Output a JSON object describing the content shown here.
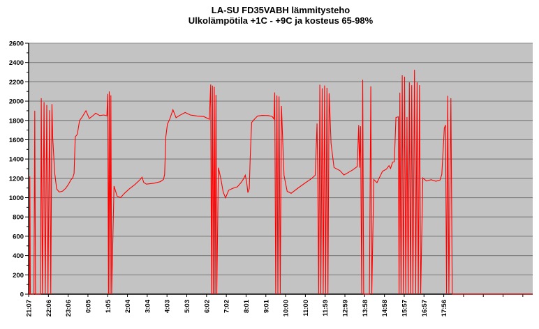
{
  "chart_data": {
    "type": "line",
    "title": "LA-SU FD35VABH lämmitysteho",
    "subtitle": "Ulkolämpötila  +1C - +9C ja kosteus 65-98%",
    "x_axis": {
      "labels": [
        "21:07",
        "22:06",
        "23:06",
        "0:05",
        "1:05",
        "2:04",
        "3:04",
        "4:03",
        "5:03",
        "6:02",
        "7:02",
        "8:01",
        "9:01",
        "10:00",
        "11:00",
        "11:59",
        "12:59",
        "13:58",
        "14:58",
        "15:57",
        "16:57",
        "17:56"
      ],
      "unlabeled_tick_count": 4,
      "span_hours": 25.5
    },
    "y_axis": {
      "min": 0,
      "max": 2600,
      "step": 200,
      "minor_step": 100,
      "tick_labels": [
        "0",
        "200",
        "400",
        "600",
        "800",
        "1000",
        "1200",
        "1400",
        "1600",
        "1800",
        "2000",
        "2200",
        "2400",
        "2600"
      ]
    },
    "grid": true,
    "legend": "none",
    "colors": {
      "plot_bg": "#C3C3C3",
      "gridline": "#808080",
      "top_gridline": "#9C9C9C",
      "axis": "#000000",
      "line": "#FF0000",
      "background": "#FFFFFF",
      "text": "#000000"
    },
    "series": [
      {
        "name": "lämmitysteho",
        "points": [
          [
            0.0,
            0
          ],
          [
            0.04,
            0
          ],
          [
            0.06,
            1220
          ],
          [
            0.09,
            0
          ],
          [
            0.27,
            0
          ],
          [
            0.31,
            1900
          ],
          [
            0.35,
            0
          ],
          [
            0.6,
            0
          ],
          [
            0.64,
            2030
          ],
          [
            0.7,
            0
          ],
          [
            0.78,
            1990
          ],
          [
            0.84,
            0
          ],
          [
            0.92,
            1960
          ],
          [
            0.98,
            0
          ],
          [
            1.06,
            1905
          ],
          [
            1.12,
            0
          ],
          [
            1.18,
            1970
          ],
          [
            1.22,
            1620
          ],
          [
            1.32,
            1250
          ],
          [
            1.42,
            1090
          ],
          [
            1.55,
            1058
          ],
          [
            1.72,
            1068
          ],
          [
            1.88,
            1098
          ],
          [
            2.02,
            1140
          ],
          [
            2.14,
            1185
          ],
          [
            2.22,
            1200
          ],
          [
            2.3,
            1250
          ],
          [
            2.36,
            1630
          ],
          [
            2.46,
            1655
          ],
          [
            2.58,
            1800
          ],
          [
            2.7,
            1832
          ],
          [
            2.9,
            1900
          ],
          [
            3.07,
            1820
          ],
          [
            3.25,
            1848
          ],
          [
            3.39,
            1875
          ],
          [
            3.6,
            1850
          ],
          [
            3.8,
            1856
          ],
          [
            3.96,
            1848
          ],
          [
            4.0,
            2075
          ],
          [
            4.04,
            0
          ],
          [
            4.08,
            2100
          ],
          [
            4.12,
            0
          ],
          [
            4.16,
            2060
          ],
          [
            4.2,
            0
          ],
          [
            4.32,
            1120
          ],
          [
            4.48,
            1015
          ],
          [
            4.65,
            1000
          ],
          [
            4.85,
            1045
          ],
          [
            5.1,
            1092
          ],
          [
            5.38,
            1136
          ],
          [
            5.62,
            1182
          ],
          [
            5.74,
            1212
          ],
          [
            5.82,
            1158
          ],
          [
            5.96,
            1140
          ],
          [
            6.35,
            1150
          ],
          [
            6.66,
            1166
          ],
          [
            6.82,
            1188
          ],
          [
            6.88,
            1240
          ],
          [
            6.94,
            1630
          ],
          [
            7.02,
            1762
          ],
          [
            7.14,
            1815
          ],
          [
            7.3,
            1910
          ],
          [
            7.46,
            1828
          ],
          [
            7.62,
            1850
          ],
          [
            7.92,
            1882
          ],
          [
            8.18,
            1856
          ],
          [
            8.52,
            1846
          ],
          [
            8.86,
            1840
          ],
          [
            9.14,
            1812
          ],
          [
            9.21,
            2172
          ],
          [
            9.25,
            0
          ],
          [
            9.3,
            2160
          ],
          [
            9.34,
            0
          ],
          [
            9.39,
            2148
          ],
          [
            9.43,
            0
          ],
          [
            9.48,
            2065
          ],
          [
            9.52,
            0
          ],
          [
            9.6,
            1310
          ],
          [
            9.72,
            1200
          ],
          [
            9.84,
            1060
          ],
          [
            9.96,
            998
          ],
          [
            10.12,
            1076
          ],
          [
            10.32,
            1096
          ],
          [
            10.56,
            1112
          ],
          [
            10.76,
            1160
          ],
          [
            10.88,
            1198
          ],
          [
            10.96,
            1232
          ],
          [
            11.03,
            1160
          ],
          [
            11.09,
            1052
          ],
          [
            11.16,
            1092
          ],
          [
            11.21,
            1420
          ],
          [
            11.28,
            1778
          ],
          [
            11.42,
            1812
          ],
          [
            11.58,
            1846
          ],
          [
            11.82,
            1852
          ],
          [
            12.12,
            1850
          ],
          [
            12.32,
            1842
          ],
          [
            12.41,
            1815
          ],
          [
            12.45,
            2090
          ],
          [
            12.5,
            0
          ],
          [
            12.56,
            2058
          ],
          [
            12.61,
            0
          ],
          [
            12.67,
            2048
          ],
          [
            12.73,
            0
          ],
          [
            12.79,
            1950
          ],
          [
            12.92,
            1230
          ],
          [
            13.08,
            1065
          ],
          [
            13.28,
            1045
          ],
          [
            13.62,
            1098
          ],
          [
            13.96,
            1148
          ],
          [
            14.3,
            1196
          ],
          [
            14.5,
            1232
          ],
          [
            14.59,
            1768
          ],
          [
            14.63,
            1200
          ],
          [
            14.67,
            0
          ],
          [
            14.73,
            2170
          ],
          [
            14.78,
            0
          ],
          [
            14.85,
            2132
          ],
          [
            14.9,
            0
          ],
          [
            14.97,
            2162
          ],
          [
            15.02,
            0
          ],
          [
            15.09,
            2138
          ],
          [
            15.14,
            0
          ],
          [
            15.2,
            2082
          ],
          [
            15.3,
            1560
          ],
          [
            15.45,
            1312
          ],
          [
            15.75,
            1280
          ],
          [
            15.95,
            1235
          ],
          [
            16.15,
            1258
          ],
          [
            16.4,
            1288
          ],
          [
            16.62,
            1322
          ],
          [
            16.7,
            1752
          ],
          [
            16.74,
            1310
          ],
          [
            16.79,
            1740
          ],
          [
            16.85,
            0
          ],
          [
            16.9,
            2221
          ],
          [
            16.95,
            0
          ],
          [
            17.24,
            0
          ],
          [
            17.31,
            2152
          ],
          [
            17.36,
            0
          ],
          [
            17.46,
            1188
          ],
          [
            17.62,
            1155
          ],
          [
            17.9,
            1272
          ],
          [
            18.1,
            1296
          ],
          [
            18.23,
            1332
          ],
          [
            18.31,
            1302
          ],
          [
            18.41,
            1368
          ],
          [
            18.5,
            1372
          ],
          [
            18.58,
            1830
          ],
          [
            18.7,
            1838
          ],
          [
            18.74,
            0
          ],
          [
            18.78,
            2088
          ],
          [
            18.84,
            0
          ],
          [
            18.9,
            2268
          ],
          [
            18.96,
            0
          ],
          [
            19.02,
            2253
          ],
          [
            19.08,
            0
          ],
          [
            19.14,
            1835
          ],
          [
            19.2,
            0
          ],
          [
            19.26,
            2195
          ],
          [
            19.32,
            0
          ],
          [
            19.38,
            2166
          ],
          [
            19.44,
            0
          ],
          [
            19.52,
            2325
          ],
          [
            19.58,
            0
          ],
          [
            19.65,
            2195
          ],
          [
            19.71,
            0
          ],
          [
            19.77,
            2166
          ],
          [
            19.83,
            0
          ],
          [
            19.94,
            1205
          ],
          [
            20.12,
            1172
          ],
          [
            20.36,
            1186
          ],
          [
            20.6,
            1170
          ],
          [
            20.81,
            1182
          ],
          [
            20.9,
            1240
          ],
          [
            21.03,
            1720
          ],
          [
            21.09,
            1752
          ],
          [
            21.14,
            0
          ],
          [
            21.2,
            2055
          ],
          [
            21.26,
            0
          ],
          [
            21.36,
            2030
          ],
          [
            21.43,
            0
          ],
          [
            21.5,
            0
          ],
          [
            25.5,
            0
          ]
        ]
      }
    ]
  }
}
